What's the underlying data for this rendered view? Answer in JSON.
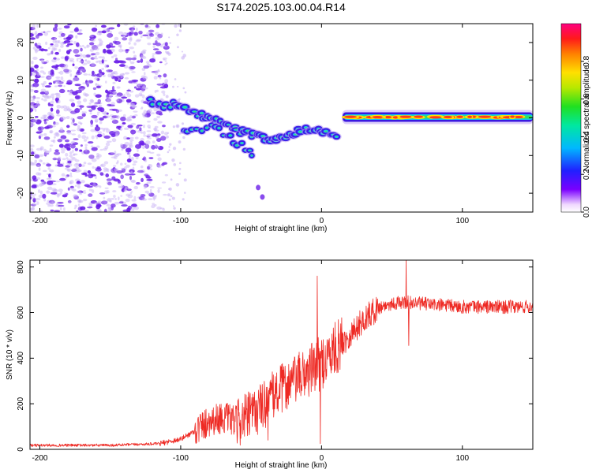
{
  "title": "S174.2025.103.00.04.R14",
  "colors": {
    "snr_line": "#ee2a24",
    "scatter_dot": "#6a1ee8",
    "scatter_faint": "#c9b3f5"
  },
  "chart_data": [
    {
      "type": "heatmap",
      "name": "spectrogram",
      "xlabel": "Height of straight line (km)",
      "ylabel": "Frequency (Hz)",
      "xlim": [
        -207,
        150
      ],
      "ylim": [
        -25,
        25
      ],
      "xticks": [
        -200,
        -100,
        0,
        100
      ],
      "yticks": [
        -20,
        -10,
        0,
        10,
        20
      ],
      "xtick_labels": [
        "-200",
        "-100",
        "0",
        "100"
      ],
      "ytick_labels": [
        "-20",
        "-10",
        "0",
        "10",
        "20"
      ],
      "noise_region_x": [
        -207,
        -110
      ],
      "ridge_points": [
        {
          "x": -122,
          "y": 4.5
        },
        {
          "x": -112,
          "y": 3.5
        },
        {
          "x": -104,
          "y": 3.5
        },
        {
          "x": -96,
          "y": 2.5
        },
        {
          "x": -88,
          "y": 1.0
        },
        {
          "x": -80,
          "y": 0.0
        },
        {
          "x": -74,
          "y": -1.0
        },
        {
          "x": -66,
          "y": -2.0
        },
        {
          "x": -58,
          "y": -3.5
        },
        {
          "x": -50,
          "y": -4.5
        },
        {
          "x": -42,
          "y": -5.0
        },
        {
          "x": -35,
          "y": -6.0
        },
        {
          "x": -28,
          "y": -5.5
        },
        {
          "x": -20,
          "y": -4.5
        },
        {
          "x": -12,
          "y": -3.0
        },
        {
          "x": -5,
          "y": -3.5
        },
        {
          "x": 4,
          "y": -4.0
        },
        {
          "x": 12,
          "y": -4.5
        }
      ],
      "branch_points": [
        {
          "x": -98,
          "y": -3.0
        },
        {
          "x": -88,
          "y": -3.5
        },
        {
          "x": -78,
          "y": -2.0
        },
        {
          "x": -70,
          "y": -4.0
        },
        {
          "x": -62,
          "y": -6.0
        },
        {
          "x": -54,
          "y": -8.0
        },
        {
          "x": -47,
          "y": -10.0
        }
      ],
      "outliers": [
        {
          "x": -42,
          "y": -21.0
        },
        {
          "x": -45,
          "y": -18.5
        }
      ],
      "steady_band": {
        "x_start": 15,
        "x_end": 150,
        "y": 0.2
      },
      "colorbar": {
        "label": "Normalized spectral amplitude",
        "range": [
          0,
          1
        ],
        "ticks": [
          0.0,
          0.2,
          0.4,
          0.6,
          0.8
        ],
        "tick_labels": [
          "0.0",
          "0.2",
          "0.4",
          "0.6",
          "0.8"
        ]
      }
    },
    {
      "type": "line",
      "name": "snr",
      "xlabel": "Height of straight line (km)",
      "ylabel": "SNR (10 * v/v)",
      "xlim": [
        -207,
        150
      ],
      "ylim": [
        0,
        830
      ],
      "xticks": [
        -200,
        -100,
        0,
        100
      ],
      "yticks": [
        0,
        200,
        400,
        600,
        800
      ],
      "xtick_labels": [
        "-200",
        "-100",
        "0",
        "100"
      ],
      "ytick_labels": [
        "0",
        "200",
        "400",
        "600",
        "800"
      ],
      "series": [
        {
          "name": "SNR",
          "envelope": [
            {
              "x": -207,
              "y": 18
            },
            {
              "x": -150,
              "y": 18
            },
            {
              "x": -115,
              "y": 25
            },
            {
              "x": -100,
              "y": 45
            },
            {
              "x": -90,
              "y": 80
            },
            {
              "x": -80,
              "y": 125
            },
            {
              "x": -70,
              "y": 140
            },
            {
              "x": -60,
              "y": 120
            },
            {
              "x": -50,
              "y": 150
            },
            {
              "x": -40,
              "y": 200
            },
            {
              "x": -30,
              "y": 260
            },
            {
              "x": -20,
              "y": 300
            },
            {
              "x": -10,
              "y": 340
            },
            {
              "x": 0,
              "y": 380
            },
            {
              "x": 10,
              "y": 440
            },
            {
              "x": 20,
              "y": 500
            },
            {
              "x": 30,
              "y": 570
            },
            {
              "x": 40,
              "y": 620
            },
            {
              "x": 50,
              "y": 640
            },
            {
              "x": 60,
              "y": 645
            },
            {
              "x": 80,
              "y": 635
            },
            {
              "x": 100,
              "y": 625
            },
            {
              "x": 125,
              "y": 625
            },
            {
              "x": 150,
              "y": 625
            }
          ],
          "spikes": [
            {
              "x": -3,
              "y": 760
            },
            {
              "x": 60,
              "y": 830
            },
            {
              "x": 62,
              "y": 455
            },
            {
              "x": -1,
              "y": 25
            },
            {
              "x": -38,
              "y": 40
            }
          ]
        }
      ]
    }
  ]
}
